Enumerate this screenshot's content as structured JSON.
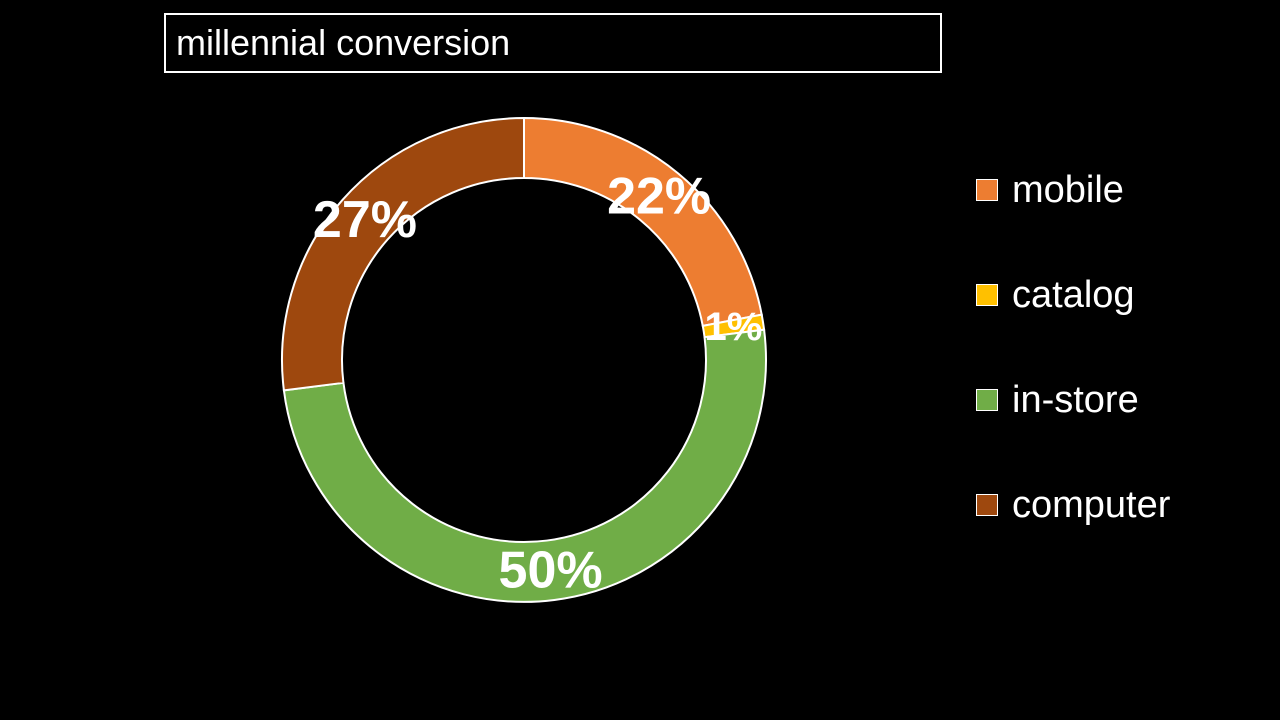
{
  "chart_data": {
    "type": "pie",
    "variant": "donut",
    "title": "millennial conversion",
    "categories": [
      "mobile",
      "catalog",
      "in-store",
      "computer"
    ],
    "values": [
      22,
      1,
      50,
      27
    ],
    "data_labels": [
      "22%",
      "1%",
      "50%",
      "27%"
    ],
    "colors": [
      "#ED7D31",
      "#FFC000",
      "#70AD47",
      "#9E480E"
    ],
    "legend_position": "right"
  }
}
